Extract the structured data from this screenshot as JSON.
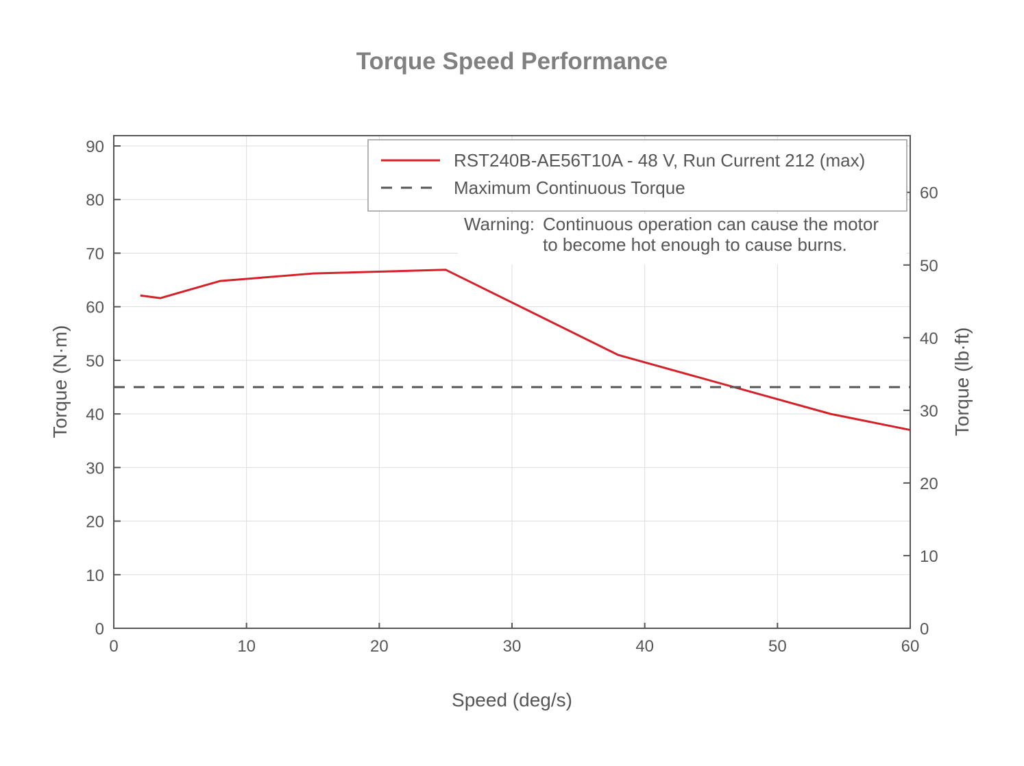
{
  "chart_data": {
    "type": "line",
    "title": "Torque Speed Performance",
    "xlabel": "Speed (deg/s)",
    "ylabel": "Torque (N·m)",
    "y2label": "Torque (lb·ft)",
    "xlim": [
      0,
      60
    ],
    "ylim": [
      0,
      92
    ],
    "y2_conversion": 0.7376,
    "xticks": [
      0,
      10,
      20,
      30,
      40,
      50,
      60
    ],
    "yticks": [
      0,
      10,
      20,
      30,
      40,
      50,
      60,
      70,
      80,
      90
    ],
    "y2ticks": [
      0,
      10,
      20,
      30,
      40,
      50,
      60
    ],
    "grid": true,
    "legend_position": "top-right",
    "series": [
      {
        "name": "RST240B-AE56T10A - 48 V, Run Current 212 (max)",
        "color": "#d62028",
        "style": "solid",
        "x": [
          2,
          3.5,
          8,
          15,
          25,
          38,
          54,
          60
        ],
        "y": [
          62.1,
          61.6,
          64.8,
          66.2,
          66.9,
          51.0,
          40.0,
          37.0
        ]
      },
      {
        "name": "Maximum Continuous Torque",
        "color": "#555555",
        "style": "dashed",
        "x": [
          0,
          60
        ],
        "y": [
          45,
          45
        ]
      }
    ],
    "annotation": {
      "label": "Warning:",
      "lines": [
        "Continuous operation can cause the motor",
        "to become hot enough to cause burns."
      ]
    }
  }
}
